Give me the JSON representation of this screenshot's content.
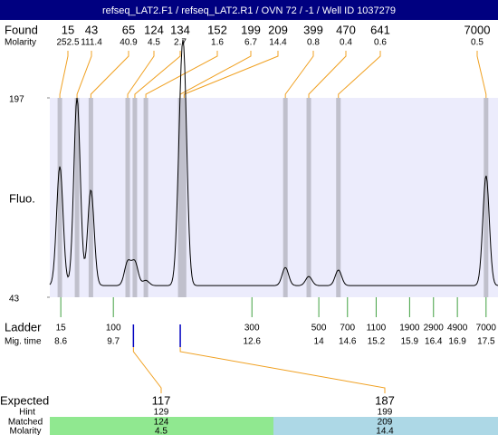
{
  "header": {
    "title": "refseq_LAT2.F1 / refseq_LAT2.R1 / OVN 72 / -1 / Well ID 1037279"
  },
  "chart_data": {
    "type": "electropherogram",
    "found_label": "Found",
    "molarity_label": "Molarity",
    "y_label": "Fluo.",
    "ylim": [
      43,
      197
    ],
    "yticks": [
      43,
      197
    ],
    "xlim": [
      8.37,
      17.75
    ],
    "baseline": 52,
    "peaks": [
      {
        "size": 15,
        "molarity": 252.5,
        "time": 8.58,
        "height": 144
      },
      {
        "size": 43,
        "molarity": 111.4,
        "time": 8.94,
        "height": 197
      },
      {
        "size": 65,
        "molarity": 40.9,
        "time": 9.23,
        "height": 126
      },
      {
        "size": 124,
        "molarity": 4.5,
        "time": 10.0,
        "height": 70
      },
      {
        "size": 134,
        "molarity": 2.7,
        "time": 10.15,
        "height": 70
      },
      {
        "size": 152,
        "molarity": 1.6,
        "time": 10.38,
        "height": 56
      },
      {
        "size": 199,
        "molarity": 6.7,
        "time": 11.1,
        "height": 133
      },
      {
        "size": 209,
        "molarity": 14.4,
        "time": 11.18,
        "height": 193
      },
      {
        "size": 399,
        "molarity": 0.8,
        "time": 13.3,
        "height": 66
      },
      {
        "size": 470,
        "molarity": 0.4,
        "time": 13.79,
        "height": 59
      },
      {
        "size": 641,
        "molarity": 0.6,
        "time": 14.41,
        "height": 64
      },
      {
        "size": 7000,
        "molarity": 0.5,
        "time": 17.5,
        "height": 137
      }
    ],
    "ladder": {
      "label": "Ladder",
      "time_label": "Mig. time",
      "sizes": [
        15,
        100,
        300,
        500,
        700,
        1100,
        1900,
        2900,
        4900,
        7000
      ],
      "times": [
        8.6,
        9.7,
        12.6,
        14,
        14.6,
        15.2,
        15.9,
        16.4,
        16.9,
        17.5
      ]
    },
    "expected": {
      "label": "Expected",
      "hint_label": "Hint",
      "matched_label": "Matched",
      "molarity_label": "Molarity",
      "columns": [
        {
          "expected": 117,
          "hint": 129,
          "matched": 124,
          "molarity": 4.5,
          "time": 10.12,
          "color": "#90e890"
        },
        {
          "expected": 187,
          "hint": 199,
          "matched": 209,
          "molarity": 14.4,
          "time": 11.1,
          "color": "#add8e6"
        }
      ]
    }
  }
}
